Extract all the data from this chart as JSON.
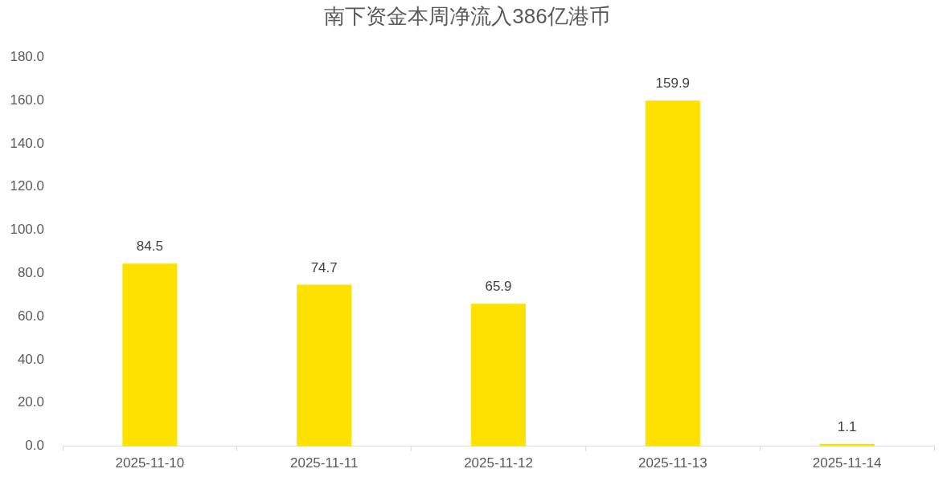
{
  "chart_data": {
    "type": "bar",
    "title": "南下资金本周净流入386亿港币",
    "categories": [
      "2025-11-10",
      "2025-11-11",
      "2025-11-12",
      "2025-11-13",
      "2025-11-14"
    ],
    "values": [
      84.5,
      74.7,
      65.9,
      159.9,
      1.1
    ],
    "color": "#ffe100",
    "ylim": [
      0,
      180
    ],
    "yticks": [
      {
        "value": 0,
        "label": "0.0"
      },
      {
        "value": 20,
        "label": "20.0"
      },
      {
        "value": 40,
        "label": "40.0"
      },
      {
        "value": 60,
        "label": "60.0"
      },
      {
        "value": 80,
        "label": "80.0"
      },
      {
        "value": 100,
        "label": "100.0"
      },
      {
        "value": 120,
        "label": "120.0"
      },
      {
        "value": 140,
        "label": "140.0"
      },
      {
        "value": 160,
        "label": "160.0"
      },
      {
        "value": 180,
        "label": "180.0"
      }
    ],
    "data_labels": true
  }
}
